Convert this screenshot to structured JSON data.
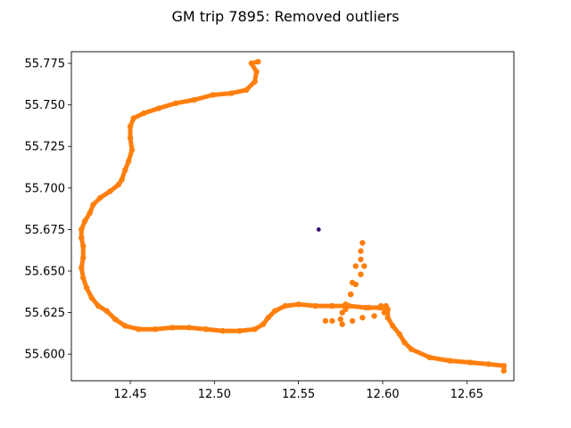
{
  "chart_data": {
    "type": "scatter",
    "title": "GM trip 7895: Removed outliers",
    "xlabel": "",
    "ylabel": "",
    "xlim": [
      12.415,
      12.678
    ],
    "ylim": [
      55.584,
      55.782
    ],
    "xticks": [
      12.45,
      12.5,
      12.55,
      12.6,
      12.65
    ],
    "xtick_labels": [
      "12.45",
      "12.50",
      "12.55",
      "12.60",
      "12.65"
    ],
    "yticks": [
      55.6,
      55.625,
      55.65,
      55.675,
      55.7,
      55.725,
      55.75,
      55.775
    ],
    "ytick_labels": [
      "55.600",
      "55.625",
      "55.650",
      "55.675",
      "55.700",
      "55.725",
      "55.750",
      "55.775"
    ],
    "grid": false,
    "series": [
      {
        "color": "#ff7f0e",
        "points": [
          [
            12.526,
            55.776
          ],
          [
            12.522,
            55.775
          ],
          [
            12.525,
            55.77
          ],
          [
            12.524,
            55.764
          ],
          [
            12.519,
            55.759
          ],
          [
            12.51,
            55.757
          ],
          [
            12.499,
            55.756
          ],
          [
            12.488,
            55.753
          ],
          [
            12.477,
            55.751
          ],
          [
            12.467,
            55.748
          ],
          [
            12.458,
            55.745
          ],
          [
            12.452,
            55.742
          ],
          [
            12.45,
            55.737
          ],
          [
            12.45,
            55.73
          ],
          [
            12.451,
            55.723
          ],
          [
            12.449,
            55.716
          ],
          [
            12.447,
            55.711
          ],
          [
            12.445,
            55.705
          ],
          [
            12.443,
            55.702
          ],
          [
            12.438,
            55.698
          ],
          [
            12.432,
            55.694
          ],
          [
            12.428,
            55.69
          ],
          [
            12.426,
            55.685
          ],
          [
            12.423,
            55.68
          ],
          [
            12.421,
            55.675
          ],
          [
            12.421,
            55.67
          ],
          [
            12.422,
            55.665
          ],
          [
            12.422,
            55.658
          ],
          [
            12.421,
            55.652
          ],
          [
            12.422,
            55.646
          ],
          [
            12.424,
            55.64
          ],
          [
            12.427,
            55.634
          ],
          [
            12.431,
            55.629
          ],
          [
            12.436,
            55.626
          ],
          [
            12.441,
            55.621
          ],
          [
            12.447,
            55.617
          ],
          [
            12.455,
            55.615
          ],
          [
            12.465,
            55.615
          ],
          [
            12.475,
            55.616
          ],
          [
            12.485,
            55.616
          ],
          [
            12.495,
            55.615
          ],
          [
            12.505,
            55.614
          ],
          [
            12.515,
            55.614
          ],
          [
            12.524,
            55.615
          ],
          [
            12.529,
            55.618
          ],
          [
            12.532,
            55.622
          ],
          [
            12.536,
            55.626
          ],
          [
            12.542,
            55.629
          ],
          [
            12.55,
            55.63
          ],
          [
            12.56,
            55.629
          ],
          [
            12.57,
            55.629
          ],
          [
            12.58,
            55.629
          ],
          [
            12.59,
            55.628
          ],
          [
            12.598,
            55.628
          ],
          [
            12.603,
            55.627
          ],
          [
            12.603,
            55.622
          ],
          [
            12.606,
            55.617
          ],
          [
            12.61,
            55.612
          ],
          [
            12.613,
            55.607
          ],
          [
            12.617,
            55.603
          ],
          [
            12.628,
            55.598
          ],
          [
            12.64,
            55.596
          ],
          [
            12.652,
            55.595
          ],
          [
            12.663,
            55.594
          ],
          [
            12.672,
            55.593
          ],
          [
            12.672,
            55.59
          ],
          [
            12.588,
            55.667
          ],
          [
            12.587,
            55.662
          ],
          [
            12.587,
            55.657
          ],
          [
            12.589,
            55.653
          ],
          [
            12.587,
            55.648
          ],
          [
            12.584,
            55.642
          ],
          [
            12.581,
            55.636
          ],
          [
            12.578,
            55.63
          ],
          [
            12.576,
            55.625
          ],
          [
            12.575,
            55.621
          ],
          [
            12.57,
            55.62
          ],
          [
            12.566,
            55.62
          ],
          [
            12.584,
            55.653
          ],
          [
            12.582,
            55.643
          ],
          [
            12.581,
            55.636
          ],
          [
            12.578,
            55.627
          ],
          [
            12.576,
            55.618
          ],
          [
            12.582,
            55.62
          ],
          [
            12.588,
            55.622
          ],
          [
            12.595,
            55.623
          ],
          [
            12.601,
            55.625
          ],
          [
            12.592,
            55.628
          ],
          [
            12.599,
            55.629
          ],
          [
            12.602,
            55.629
          ]
        ]
      },
      {
        "color": "#3b0f70",
        "points": [
          [
            12.562,
            55.675
          ]
        ]
      }
    ]
  }
}
